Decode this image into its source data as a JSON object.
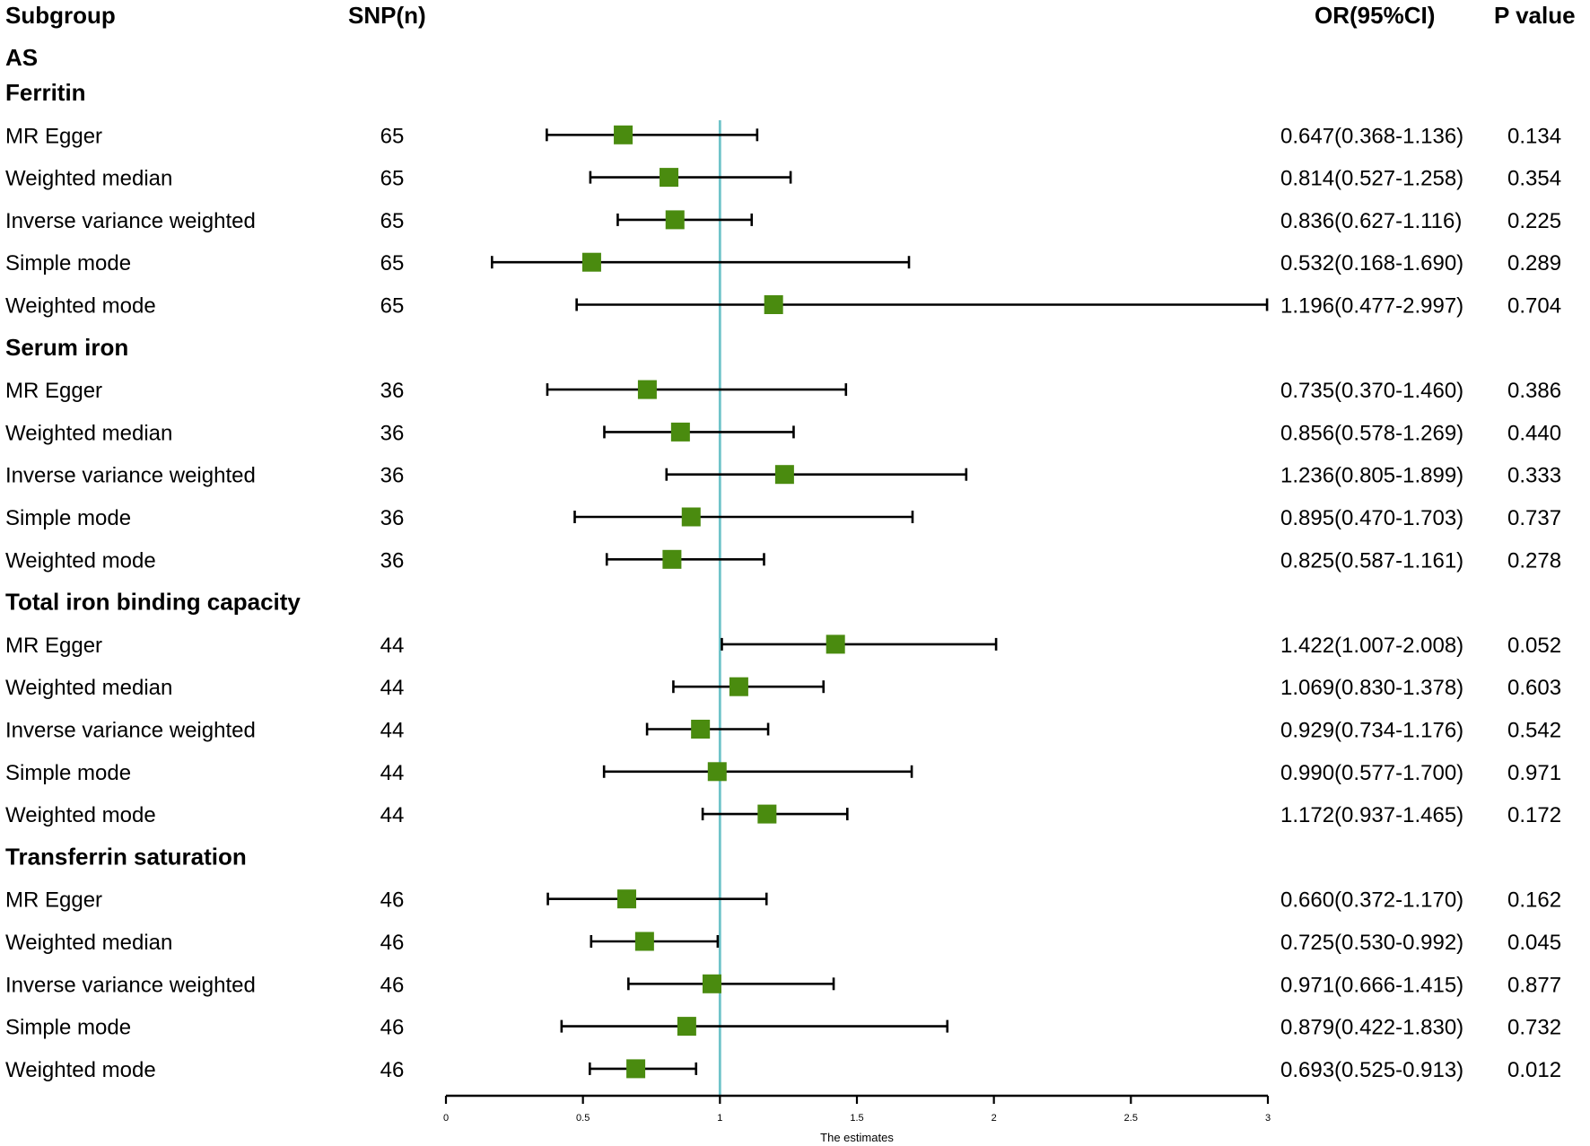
{
  "chart_data": {
    "type": "forest",
    "headers": {
      "subgroup": "Subgroup",
      "snp": "SNP(n)",
      "or": "OR(95%CI)",
      "p": "P value"
    },
    "outcome": "AS",
    "xlabel": "The estimates",
    "xlim": [
      0,
      3
    ],
    "xticks": [
      "0",
      "0.5",
      "1",
      "1.5",
      "2",
      "2.5",
      "3"
    ],
    "reference_line": 1,
    "colors": {
      "marker": "#4a8b0f",
      "reference": "#6fc3c9",
      "line": "#000000"
    },
    "groups": [
      {
        "name": "Ferritin",
        "rows": [
          {
            "method": "MR Egger",
            "snp": "65",
            "or": 0.647,
            "lo": 0.368,
            "hi": 1.136,
            "label": "0.647(0.368-1.136)",
            "p": "0.134"
          },
          {
            "method": "Weighted median",
            "snp": "65",
            "or": 0.814,
            "lo": 0.527,
            "hi": 1.258,
            "label": "0.814(0.527-1.258)",
            "p": "0.354"
          },
          {
            "method": "Inverse variance weighted",
            "snp": "65",
            "or": 0.836,
            "lo": 0.627,
            "hi": 1.116,
            "label": "0.836(0.627-1.116)",
            "p": "0.225"
          },
          {
            "method": "Simple mode",
            "snp": "65",
            "or": 0.532,
            "lo": 0.168,
            "hi": 1.69,
            "label": "0.532(0.168-1.690)",
            "p": "0.289"
          },
          {
            "method": "Weighted mode",
            "snp": "65",
            "or": 1.196,
            "lo": 0.477,
            "hi": 2.997,
            "label": "1.196(0.477-2.997)",
            "p": "0.704"
          }
        ]
      },
      {
        "name": "Serum iron",
        "rows": [
          {
            "method": "MR Egger",
            "snp": "36",
            "or": 0.735,
            "lo": 0.37,
            "hi": 1.46,
            "label": "0.735(0.370-1.460)",
            "p": "0.386"
          },
          {
            "method": "Weighted median",
            "snp": "36",
            "or": 0.856,
            "lo": 0.578,
            "hi": 1.269,
            "label": "0.856(0.578-1.269)",
            "p": "0.440"
          },
          {
            "method": "Inverse variance weighted",
            "snp": "36",
            "or": 1.236,
            "lo": 0.805,
            "hi": 1.899,
            "label": "1.236(0.805-1.899)",
            "p": "0.333"
          },
          {
            "method": "Simple mode",
            "snp": "36",
            "or": 0.895,
            "lo": 0.47,
            "hi": 1.703,
            "label": "0.895(0.470-1.703)",
            "p": "0.737"
          },
          {
            "method": "Weighted mode",
            "snp": "36",
            "or": 0.825,
            "lo": 0.587,
            "hi": 1.161,
            "label": "0.825(0.587-1.161)",
            "p": "0.278"
          }
        ]
      },
      {
        "name": "Total iron binding capacity",
        "rows": [
          {
            "method": "MR Egger",
            "snp": "44",
            "or": 1.422,
            "lo": 1.007,
            "hi": 2.008,
            "label": "1.422(1.007-2.008)",
            "p": "0.052"
          },
          {
            "method": "Weighted median",
            "snp": "44",
            "or": 1.069,
            "lo": 0.83,
            "hi": 1.378,
            "label": "1.069(0.830-1.378)",
            "p": "0.603"
          },
          {
            "method": "Inverse variance weighted",
            "snp": "44",
            "or": 0.929,
            "lo": 0.734,
            "hi": 1.176,
            "label": "0.929(0.734-1.176)",
            "p": "0.542"
          },
          {
            "method": "Simple mode",
            "snp": "44",
            "or": 0.99,
            "lo": 0.577,
            "hi": 1.7,
            "label": "0.990(0.577-1.700)",
            "p": "0.971"
          },
          {
            "method": "Weighted mode",
            "snp": "44",
            "or": 1.172,
            "lo": 0.937,
            "hi": 1.465,
            "label": "1.172(0.937-1.465)",
            "p": "0.172"
          }
        ]
      },
      {
        "name": "Transferrin saturation",
        "rows": [
          {
            "method": "MR Egger",
            "snp": "46",
            "or": 0.66,
            "lo": 0.372,
            "hi": 1.17,
            "label": "0.660(0.372-1.170)",
            "p": "0.162"
          },
          {
            "method": "Weighted median",
            "snp": "46",
            "or": 0.725,
            "lo": 0.53,
            "hi": 0.992,
            "label": "0.725(0.530-0.992)",
            "p": "0.045"
          },
          {
            "method": "Inverse variance weighted",
            "snp": "46",
            "or": 0.971,
            "lo": 0.666,
            "hi": 1.415,
            "label": "0.971(0.666-1.415)",
            "p": "0.877"
          },
          {
            "method": "Simple mode",
            "snp": "46",
            "or": 0.879,
            "lo": 0.422,
            "hi": 1.83,
            "label": "0.879(0.422-1.830)",
            "p": "0.732"
          },
          {
            "method": "Weighted mode",
            "snp": "46",
            "or": 0.693,
            "lo": 0.525,
            "hi": 0.913,
            "label": "0.693(0.525-0.913)",
            "p": "0.012"
          }
        ]
      }
    ]
  }
}
